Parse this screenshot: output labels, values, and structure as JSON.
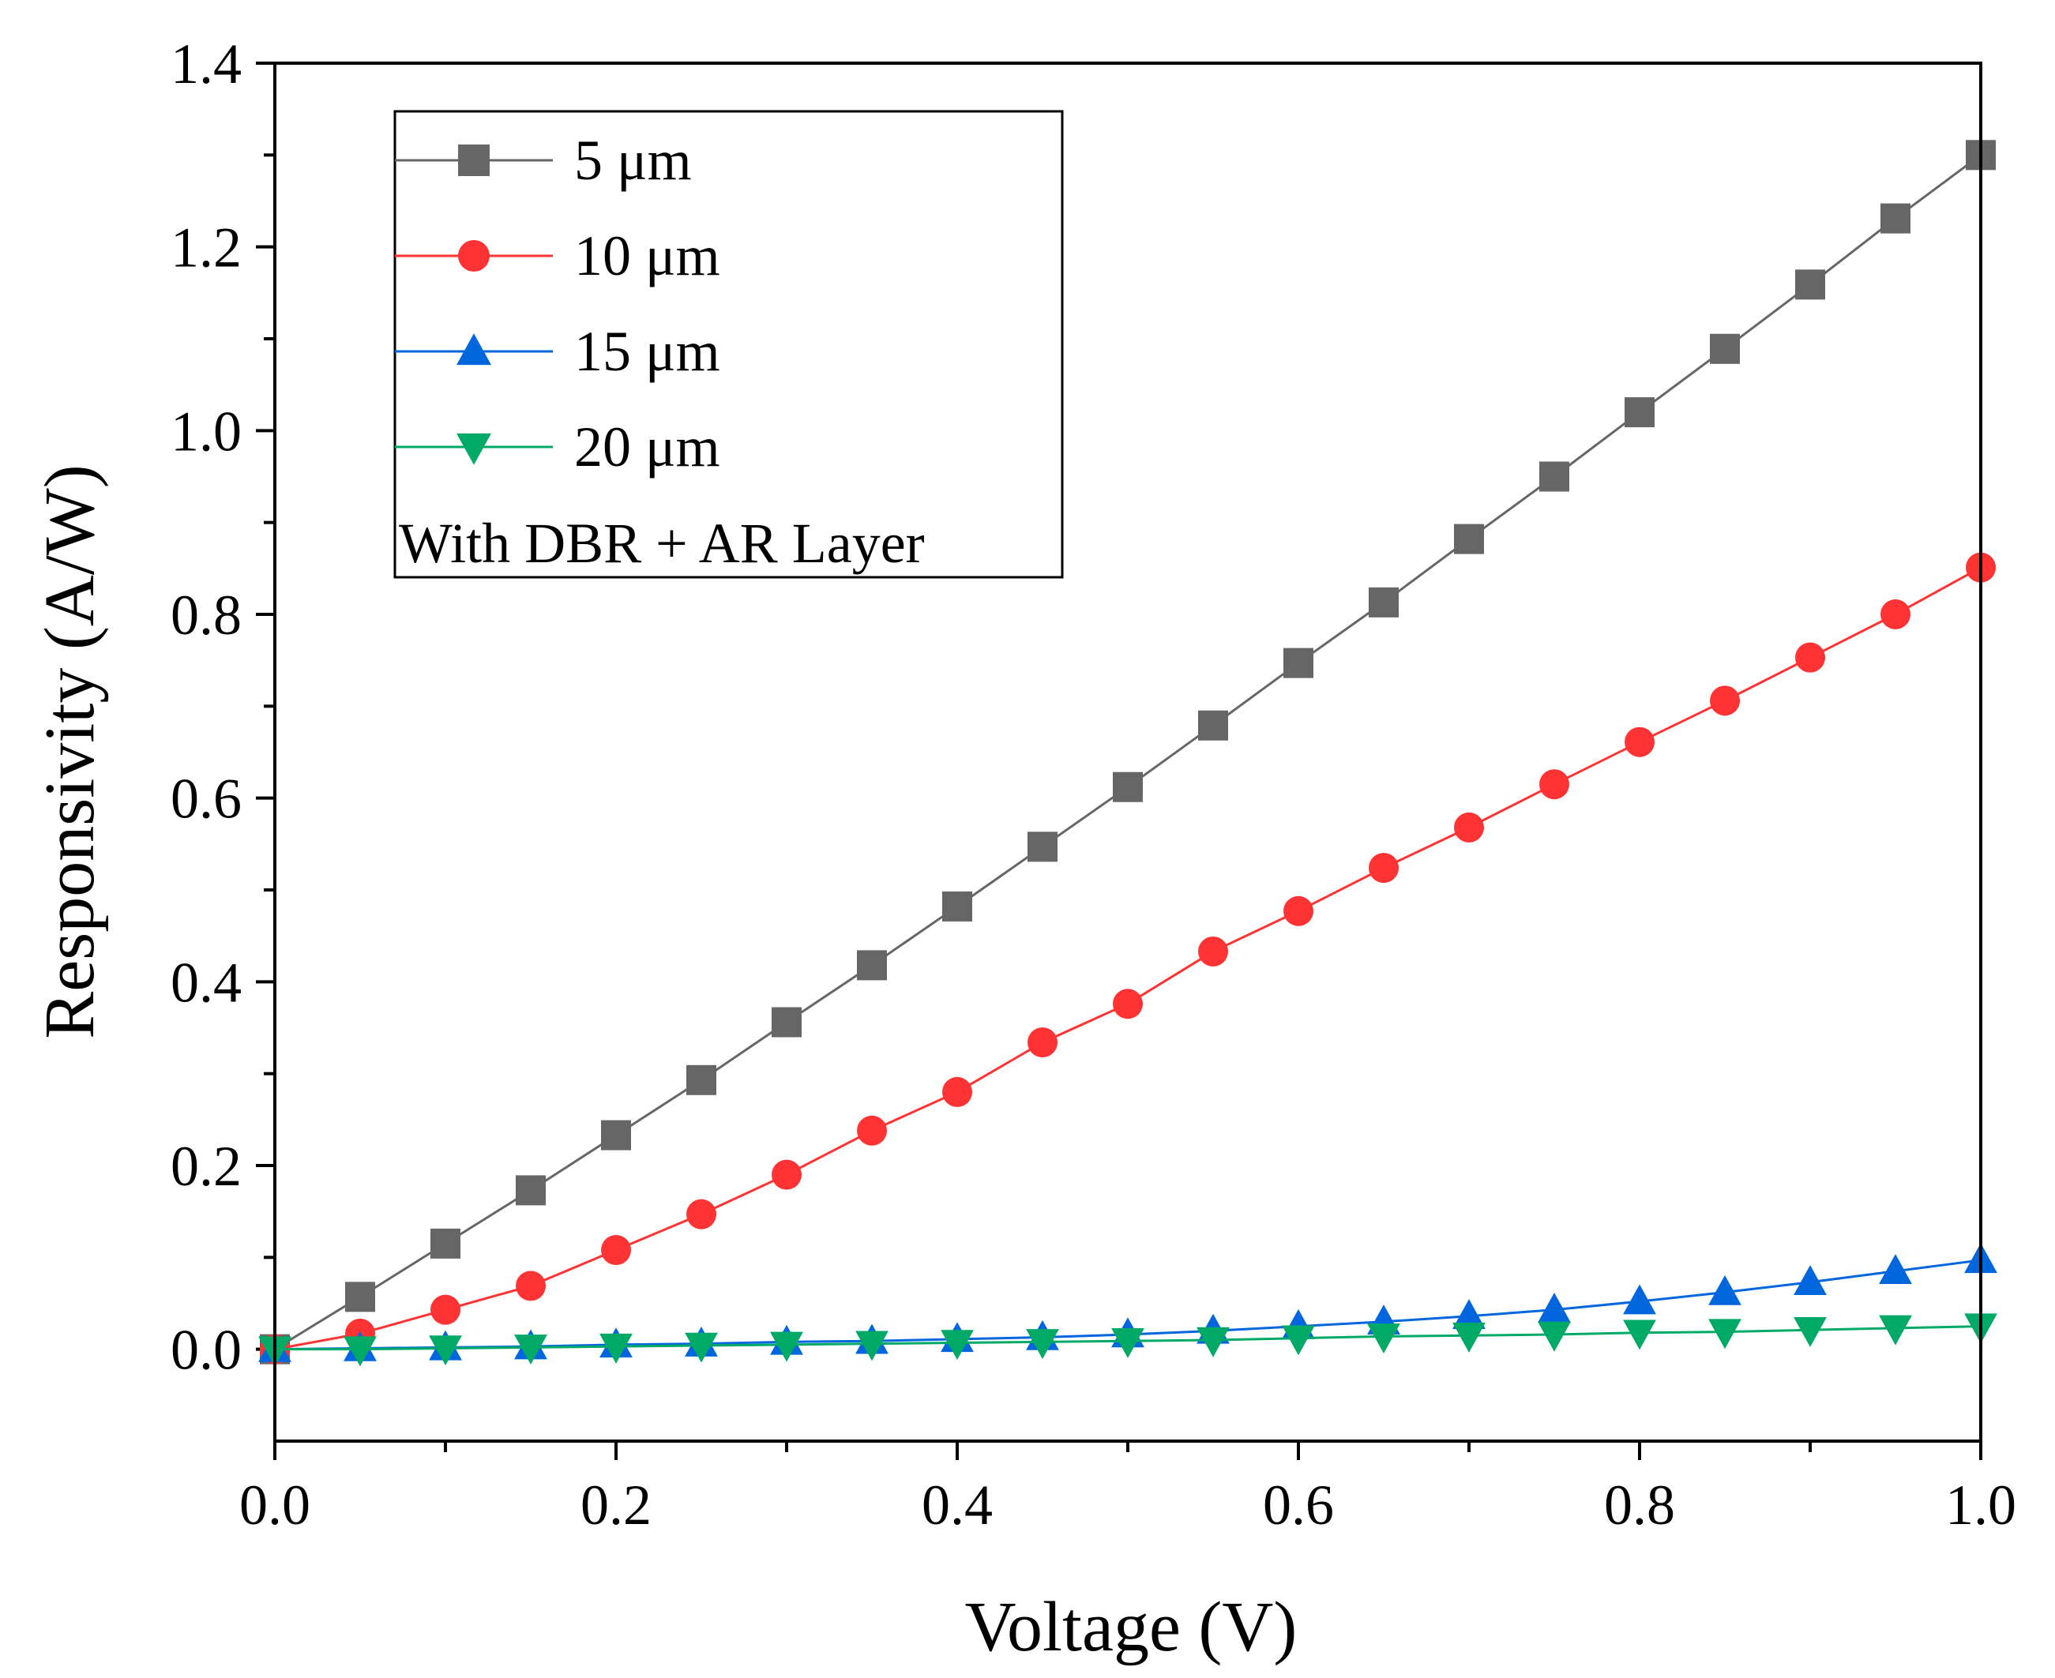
{
  "chart_data": {
    "type": "line",
    "title": "",
    "xlabel": "Voltage (V)",
    "ylabel": "Responsivity (A/W)",
    "xlim": [
      0.0,
      1.0
    ],
    "ylim": [
      -0.1,
      1.4
    ],
    "x_ticks": [
      0.0,
      0.2,
      0.4,
      0.6,
      0.8,
      1.0
    ],
    "x_tick_labels": [
      "0.0",
      "0.2",
      "0.4",
      "0.6",
      "0.8",
      "1.0"
    ],
    "y_ticks": [
      0.0,
      0.2,
      0.4,
      0.6,
      0.8,
      1.0,
      1.2,
      1.4
    ],
    "y_tick_labels": [
      "0.0",
      "0.2",
      "0.4",
      "0.6",
      "0.8",
      "1.0",
      "1.2",
      "1.4"
    ],
    "legend_position": "top-left",
    "legend_note": "With DBR + AR Layer",
    "x": [
      0.0,
      0.05,
      0.1,
      0.15,
      0.2,
      0.25,
      0.3,
      0.35,
      0.4,
      0.45,
      0.5,
      0.55,
      0.6,
      0.65,
      0.7,
      0.75,
      0.8,
      0.85,
      0.9,
      0.95,
      1.0
    ],
    "series": [
      {
        "name": "5 μm",
        "color": "#666666",
        "marker": "square",
        "values": [
          0.0,
          0.057,
          0.115,
          0.173,
          0.233,
          0.293,
          0.356,
          0.418,
          0.482,
          0.547,
          0.612,
          0.679,
          0.747,
          0.813,
          0.882,
          0.95,
          1.02,
          1.089,
          1.159,
          1.231,
          1.3
        ]
      },
      {
        "name": "10 μm",
        "color": "#ff3333",
        "marker": "circle",
        "values": [
          0.0,
          0.017,
          0.043,
          0.069,
          0.108,
          0.147,
          0.19,
          0.238,
          0.28,
          0.334,
          0.376,
          0.433,
          0.477,
          0.524,
          0.568,
          0.615,
          0.661,
          0.706,
          0.753,
          0.8,
          0.851
        ]
      },
      {
        "name": "15 μm",
        "color": "#0066dd",
        "marker": "triangle-up",
        "values": [
          0.0,
          0.001,
          0.002,
          0.003,
          0.005,
          0.006,
          0.008,
          0.009,
          0.011,
          0.013,
          0.016,
          0.02,
          0.025,
          0.03,
          0.036,
          0.043,
          0.052,
          0.062,
          0.073,
          0.085,
          0.097
        ]
      },
      {
        "name": "20 μm",
        "color": "#00aa66",
        "marker": "triangle-down",
        "values": [
          0.0,
          0.0,
          0.001,
          0.002,
          0.003,
          0.004,
          0.005,
          0.006,
          0.007,
          0.008,
          0.009,
          0.01,
          0.012,
          0.014,
          0.015,
          0.016,
          0.018,
          0.019,
          0.021,
          0.023,
          0.025
        ]
      }
    ]
  }
}
